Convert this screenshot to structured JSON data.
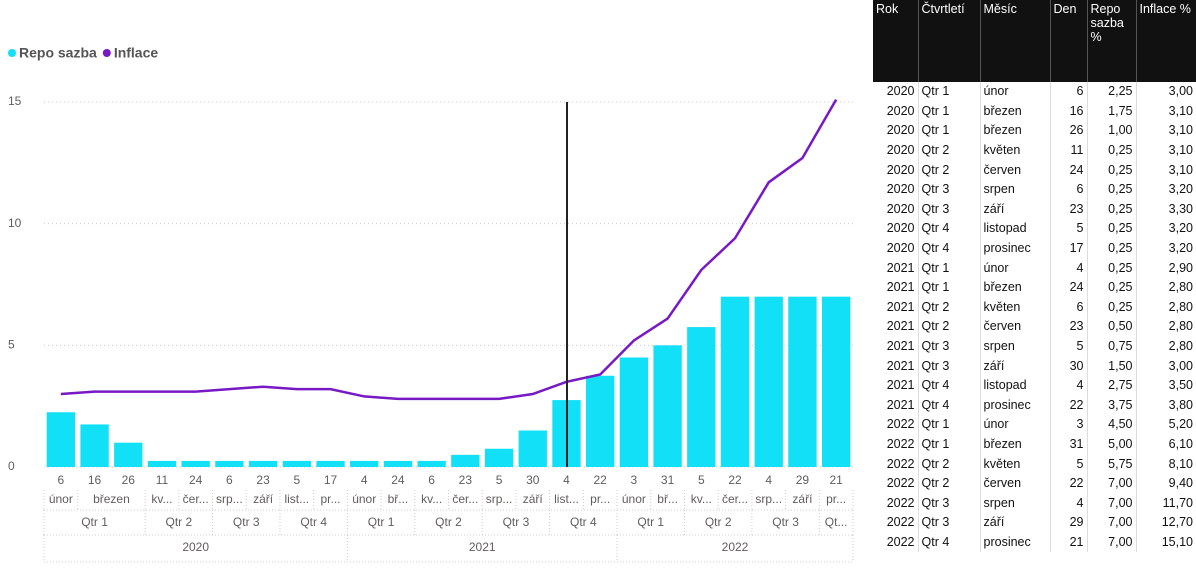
{
  "chart_data": {
    "type": "bar_line",
    "categories": [
      "6",
      "16",
      "26",
      "11",
      "24",
      "6",
      "23",
      "5",
      "17",
      "4",
      "24",
      "6",
      "23",
      "5",
      "30",
      "4",
      "22",
      "3",
      "31",
      "5",
      "22",
      "4",
      "29",
      "21"
    ],
    "months": [
      "únor",
      "březen",
      null,
      "kv...",
      "čer...",
      "srp...",
      "září",
      "list...",
      "pr...",
      "únor",
      "bř...",
      "kv...",
      "čer...",
      "srp...",
      "září",
      "list...",
      "pr...",
      "únor",
      "bř...",
      "kv...",
      "čer...",
      "srp...",
      "září",
      "pr..."
    ],
    "quarters": [
      "Qtr 1",
      null,
      null,
      "Qtr 2",
      null,
      "Qtr 3",
      null,
      "Qtr 4",
      null,
      "Qtr 1",
      null,
      "Qtr 2",
      null,
      "Qtr 3",
      null,
      "Qtr 4",
      null,
      "Qtr 1",
      null,
      "Qtr 2",
      null,
      "Qtr 3",
      null,
      "Qt..."
    ],
    "years": [
      "2020",
      null,
      null,
      null,
      null,
      null,
      null,
      null,
      null,
      "2021",
      null,
      null,
      null,
      null,
      null,
      null,
      null,
      "2022",
      null,
      null,
      null,
      null,
      null,
      null
    ],
    "series": [
      {
        "name": "Repo sazba",
        "color": "#12e0f7",
        "kind": "bar",
        "values": [
          2.25,
          1.75,
          1.0,
          0.25,
          0.25,
          0.25,
          0.25,
          0.25,
          0.25,
          0.25,
          0.25,
          0.25,
          0.5,
          0.75,
          1.5,
          2.75,
          3.75,
          4.5,
          5.0,
          5.75,
          7.0,
          7.0,
          7.0,
          7.0
        ]
      },
      {
        "name": "Inflace",
        "color": "#7719c4",
        "kind": "line",
        "values": [
          3.0,
          3.1,
          3.1,
          3.1,
          3.1,
          3.2,
          3.3,
          3.2,
          3.2,
          2.9,
          2.8,
          2.8,
          2.8,
          2.8,
          3.0,
          3.5,
          3.8,
          5.2,
          6.1,
          8.1,
          9.4,
          11.7,
          12.7,
          15.1
        ]
      }
    ],
    "ylim": [
      0,
      15
    ],
    "yticks": [
      0,
      5,
      10,
      15
    ],
    "grid": true,
    "legend": "top-left"
  },
  "table": {
    "header": [
      "Rok",
      "Čtvrtletí",
      "Měsíc",
      "Den",
      "Repo sazba %",
      "Inflace %"
    ],
    "rows": [
      [
        "2020",
        "Qtr 1",
        "únor",
        "6",
        "2,25",
        "3,00"
      ],
      [
        "2020",
        "Qtr 1",
        "březen",
        "16",
        "1,75",
        "3,10"
      ],
      [
        "2020",
        "Qtr 1",
        "březen",
        "26",
        "1,00",
        "3,10"
      ],
      [
        "2020",
        "Qtr 2",
        "květen",
        "11",
        "0,25",
        "3,10"
      ],
      [
        "2020",
        "Qtr 2",
        "červen",
        "24",
        "0,25",
        "3,10"
      ],
      [
        "2020",
        "Qtr 3",
        "srpen",
        "6",
        "0,25",
        "3,20"
      ],
      [
        "2020",
        "Qtr 3",
        "září",
        "23",
        "0,25",
        "3,30"
      ],
      [
        "2020",
        "Qtr 4",
        "listopad",
        "5",
        "0,25",
        "3,20"
      ],
      [
        "2020",
        "Qtr 4",
        "prosinec",
        "17",
        "0,25",
        "3,20"
      ],
      [
        "2021",
        "Qtr 1",
        "únor",
        "4",
        "0,25",
        "2,90"
      ],
      [
        "2021",
        "Qtr 1",
        "březen",
        "24",
        "0,25",
        "2,80"
      ],
      [
        "2021",
        "Qtr 2",
        "květen",
        "6",
        "0,25",
        "2,80"
      ],
      [
        "2021",
        "Qtr 2",
        "červen",
        "23",
        "0,50",
        "2,80"
      ],
      [
        "2021",
        "Qtr 3",
        "srpen",
        "5",
        "0,75",
        "2,80"
      ],
      [
        "2021",
        "Qtr 3",
        "září",
        "30",
        "1,50",
        "3,00"
      ],
      [
        "2021",
        "Qtr 4",
        "listopad",
        "4",
        "2,75",
        "3,50"
      ],
      [
        "2021",
        "Qtr 4",
        "prosinec",
        "22",
        "3,75",
        "3,80"
      ],
      [
        "2022",
        "Qtr 1",
        "únor",
        "3",
        "4,50",
        "5,20"
      ],
      [
        "2022",
        "Qtr 1",
        "březen",
        "31",
        "5,00",
        "6,10"
      ],
      [
        "2022",
        "Qtr 2",
        "květen",
        "5",
        "5,75",
        "8,10"
      ],
      [
        "2022",
        "Qtr 2",
        "červen",
        "22",
        "7,00",
        "9,40"
      ],
      [
        "2022",
        "Qtr 3",
        "srpen",
        "4",
        "7,00",
        "11,70"
      ],
      [
        "2022",
        "Qtr 3",
        "září",
        "29",
        "7,00",
        "12,70"
      ],
      [
        "2022",
        "Qtr 4",
        "prosinec",
        "21",
        "7,00",
        "15,10"
      ]
    ]
  }
}
